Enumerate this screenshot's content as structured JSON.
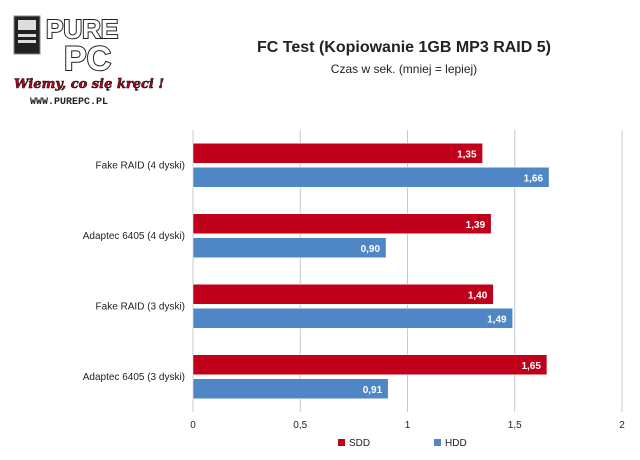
{
  "logo": {
    "brand_top": "PURE",
    "brand_bottom": "PC",
    "slogan": "Wiemy, co się kręci !",
    "url": "WWW.PUREPC.PL"
  },
  "chart_data": {
    "type": "bar",
    "orientation": "horizontal",
    "title": "FC Test (Kopiowanie 1GB MP3 RAID 5)",
    "subtitle": "Czas w sek. (mniej = lepiej)",
    "xlabel": "",
    "ylabel": "",
    "categories": [
      "Fake RAID (4 dyski)",
      "Adaptec 6405 (4 dyski)",
      "Fake RAID (3 dyski)",
      "Adaptec 6405 (3 dyski)"
    ],
    "series": [
      {
        "name": "SDD",
        "values": [
          1.35,
          1.39,
          1.4,
          1.65
        ],
        "labels": [
          "1,35",
          "1,39",
          "1,40",
          "1,65"
        ],
        "color": "#c0001a"
      },
      {
        "name": "HDD",
        "values": [
          1.66,
          0.9,
          1.49,
          0.91
        ],
        "labels": [
          "1,66",
          "0,90",
          "1,49",
          "0,91"
        ],
        "color": "#4f86c6"
      }
    ],
    "xlim": [
      0,
      2
    ],
    "ticks": [
      0,
      0.5,
      1,
      1.5,
      2
    ],
    "tick_labels": [
      "0",
      "0,5",
      "1",
      "1,5",
      "2"
    ],
    "grid": true,
    "legend": "bottom"
  }
}
